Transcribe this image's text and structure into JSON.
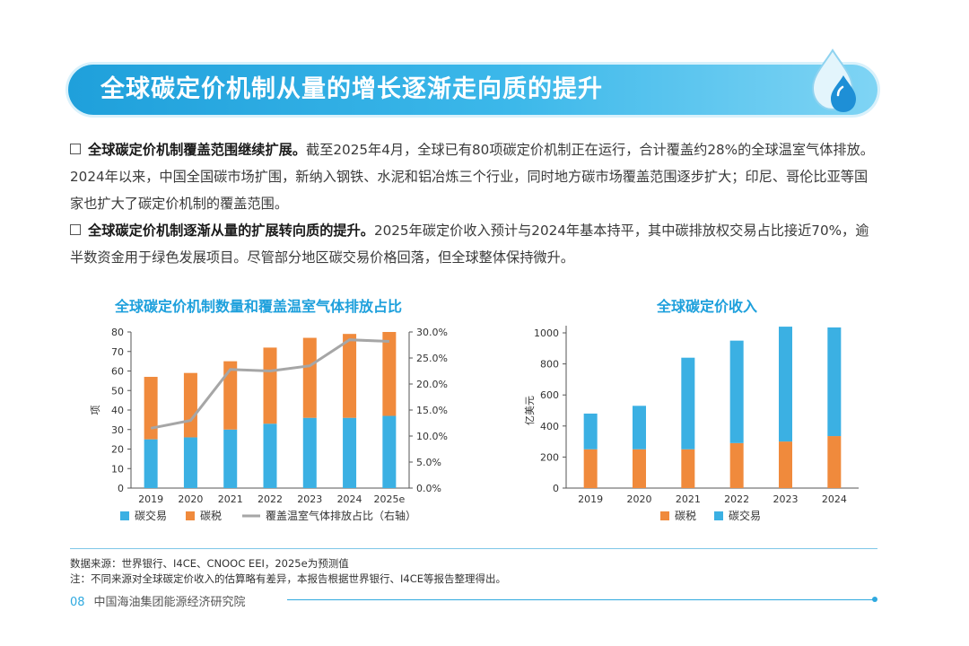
{
  "header": {
    "title": "全球碳定价机制从量的增长逐渐走向质的提升"
  },
  "bullets": [
    {
      "bold": "全球碳定价机制覆盖范围继续扩展。",
      "text": "截至2025年4月，全球已有80项碳定价机制正在运行，合计覆盖约28%的全球温室气体排放。2024年以来，中国全国碳市场扩围，新纳入钢铁、水泥和铝冶炼三个行业，同时地方碳市场覆盖范围逐步扩大；印尼、哥伦比亚等国家也扩大了碳定价机制的覆盖范围。"
    },
    {
      "bold": "全球碳定价机制逐渐从量的扩展转向质的提升。",
      "text": "2025年碳定价收入预计与2024年基本持平，其中碳排放权交易占比接近70%，逾半数资金用于绿色发展项目。尽管部分地区碳交易价格回落，但全球整体保持微升。"
    }
  ],
  "colors": {
    "trade": "#3bb0e3",
    "tax": "#f08a3c",
    "line": "#a6a6a6",
    "accent": "#1ea0dc"
  },
  "chart_data": [
    {
      "type": "bar",
      "title": "全球碳定价机制数量和覆盖温室气体排放占比",
      "categories": [
        "2019",
        "2020",
        "2021",
        "2022",
        "2023",
        "2024",
        "2025e"
      ],
      "series": [
        {
          "name": "碳交易",
          "values": [
            25,
            26,
            30,
            33,
            36,
            36,
            37
          ]
        },
        {
          "name": "碳税",
          "values": [
            32,
            33,
            35,
            39,
            41,
            43,
            43
          ]
        },
        {
          "name": "覆盖温室气体排放占比（右轴）",
          "axis": "right",
          "values": [
            11.5,
            13,
            22.8,
            22.5,
            23.5,
            28.5,
            28.2
          ]
        }
      ],
      "ylabel": "项",
      "ylim": [
        0,
        80
      ],
      "yticks": [
        "0",
        "10",
        "20",
        "30",
        "40",
        "50",
        "60",
        "70",
        "80"
      ],
      "y2lim": [
        0,
        30
      ],
      "y2ticks": [
        "0.0%",
        "5.0%",
        "10.0%",
        "15.0%",
        "20.0%",
        "25.0%",
        "30.0%"
      ],
      "legend": [
        "碳交易",
        "碳税",
        "覆盖温室气体排放占比（右轴）"
      ]
    },
    {
      "type": "bar",
      "title": "全球碳定价收入",
      "categories": [
        "2019",
        "2020",
        "2021",
        "2022",
        "2023",
        "2024"
      ],
      "series": [
        {
          "name": "碳税",
          "values": [
            250,
            250,
            250,
            290,
            300,
            335
          ]
        },
        {
          "name": "碳交易",
          "values": [
            230,
            280,
            590,
            660,
            740,
            700
          ]
        }
      ],
      "ylabel": "亿美元",
      "ylim": [
        0,
        1000
      ],
      "yticks": [
        "0",
        "200",
        "400",
        "600",
        "800",
        "1000"
      ],
      "legend": [
        "碳税",
        "碳交易"
      ]
    }
  ],
  "notes": {
    "source": "数据来源：世界银行、I4CE、CNOOC EEI，2025e为预测值",
    "note": "注：不同来源对全球碳定价收入的估算略有差异，本报告根据世界银行、I4CE等报告整理得出。"
  },
  "footer": {
    "page": "08",
    "org": "中国海油集团能源经济研究院"
  }
}
